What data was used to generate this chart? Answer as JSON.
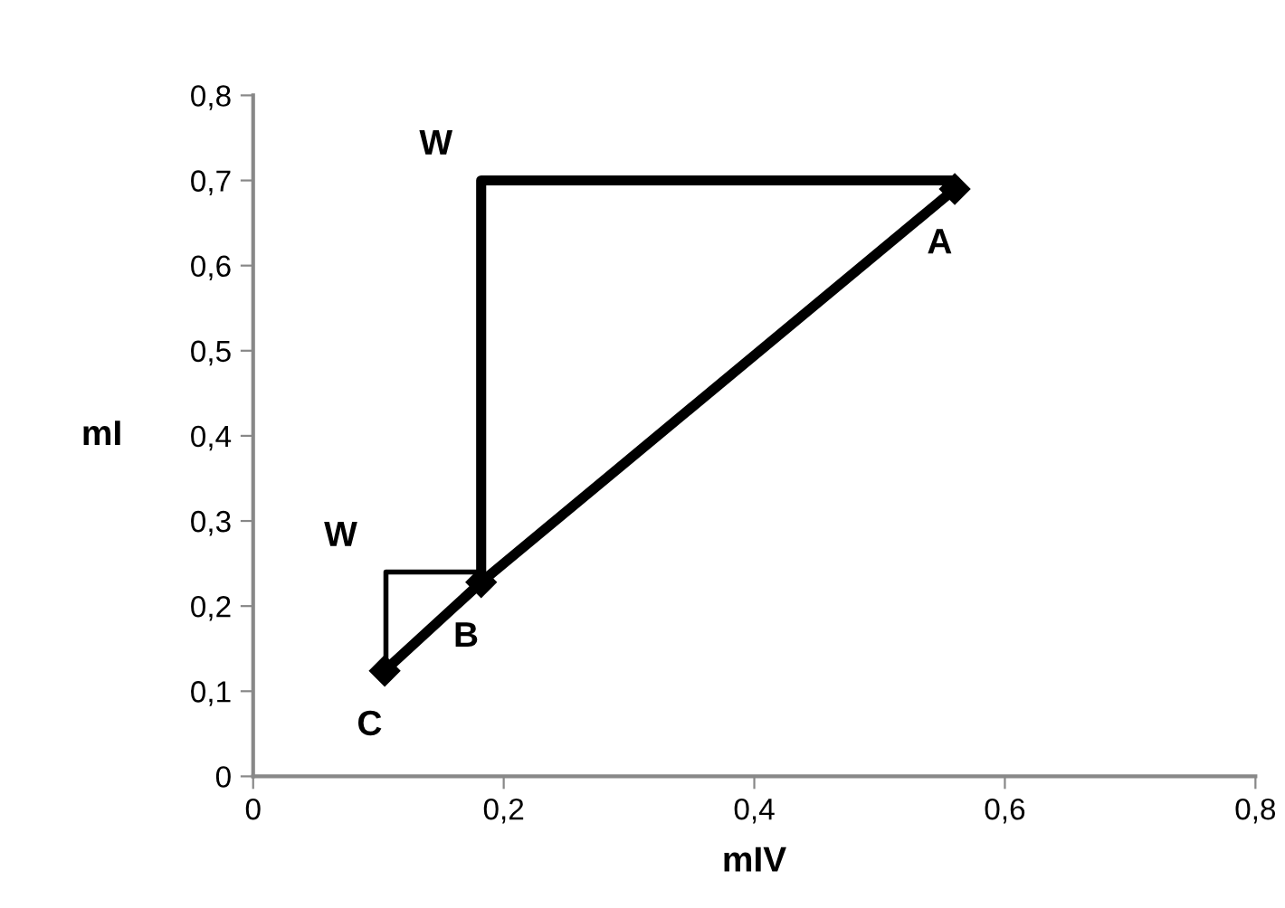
{
  "chart_data": {
    "type": "line",
    "xlabel": "mIV",
    "ylabel": "mI",
    "xlim": [
      0,
      0.8
    ],
    "ylim": [
      0,
      0.8
    ],
    "xticks": [
      0,
      {
        "value": 0.2,
        "label": "0,2"
      },
      {
        "value": 0.4,
        "label": "0,4"
      },
      {
        "value": 0.6,
        "label": "0,6"
      },
      {
        "value": 0.8,
        "label": "0,8"
      }
    ],
    "yticks": [
      0,
      {
        "value": 0.1,
        "label": "0,1"
      },
      {
        "value": 0.2,
        "label": "0,2"
      },
      {
        "value": 0.3,
        "label": "0,3"
      },
      {
        "value": 0.4,
        "label": "0,4"
      },
      {
        "value": 0.5,
        "label": "0,5"
      },
      {
        "value": 0.6,
        "label": "0,6"
      },
      {
        "value": 0.7,
        "label": "0,7"
      },
      {
        "value": 0.8,
        "label": "0,8"
      }
    ],
    "grid": false,
    "series": [
      {
        "color": "#000000",
        "marker": "diamond",
        "x": [
          0.105,
          0.182,
          0.56
        ],
        "values": [
          0.124,
          0.228,
          0.69
        ]
      },
      {
        "color": "#000000",
        "marker": "none",
        "x": [
          0.56,
          0.182,
          0.182
        ],
        "values": [
          0.7,
          0.7,
          0.228
        ]
      },
      {
        "color": "#000000",
        "marker": "none",
        "x": [
          0.182,
          0.106,
          0.106
        ],
        "values": [
          0.24,
          0.24,
          0.124
        ]
      }
    ],
    "annotations": [
      {
        "text": "A",
        "x": 0.56,
        "y": 0.69
      },
      {
        "text": "B",
        "x": 0.182,
        "y": 0.228
      },
      {
        "text": "C",
        "x": 0.105,
        "y": 0.124
      },
      {
        "text": "W",
        "x": 0.182,
        "y": 0.7
      },
      {
        "text": "W",
        "x": 0.106,
        "y": 0.24
      }
    ]
  }
}
